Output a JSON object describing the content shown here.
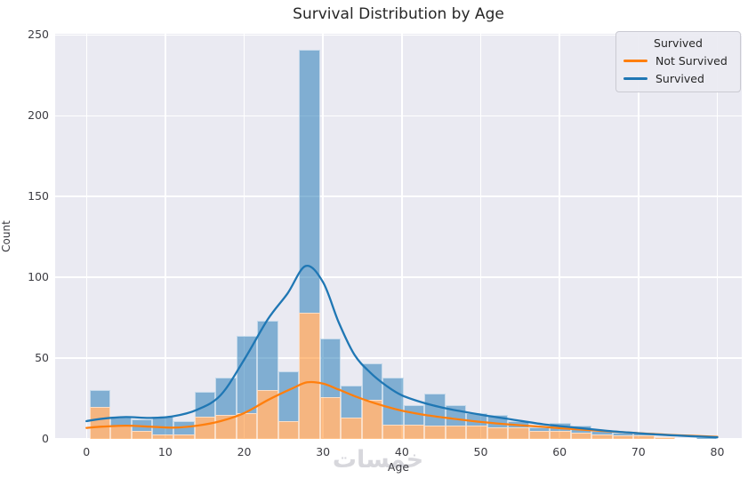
{
  "title": "Survival Distribution by Age",
  "watermark_text": "خمسات",
  "axes": {
    "xlabel": "Age",
    "ylabel": "Count",
    "x_ticks": [
      0,
      10,
      20,
      30,
      40,
      50,
      60,
      70,
      80
    ],
    "y_ticks": [
      0,
      50,
      100,
      150,
      200,
      250
    ]
  },
  "legend": {
    "title": "Survived",
    "items": [
      {
        "label": "Not Survived",
        "color": "#ff7f0e"
      },
      {
        "label": "Survived",
        "color": "#1f77b4"
      }
    ]
  },
  "colors": {
    "plot_background": "#eaeaf2",
    "grid": "#ffffff",
    "bar_not_survived": "rgba(255,127,14,0.5)",
    "bar_survived": "rgba(31,119,180,0.52)",
    "line_not_survived": "#ff7f0e",
    "line_survived": "#1f77b4",
    "text": "#262626"
  },
  "chart_data": {
    "type": "bar",
    "subtype": "stacked histogram with kde overlay",
    "title": "Survival Distribution by Age",
    "xlabel": "Age",
    "ylabel": "Count",
    "xlim": [
      -3.6,
      83.2
    ],
    "ylim": [
      0,
      250.7
    ],
    "grid": true,
    "legend_position": "upper right",
    "bins": {
      "start": 0.42,
      "width": 2.6527,
      "count": 30
    },
    "series": [
      {
        "name": "Not Survived",
        "stack_order": "bottom",
        "values": [
          20,
          8,
          5,
          3,
          3,
          14,
          15,
          16,
          30,
          11,
          78,
          26,
          13,
          24,
          9,
          9,
          8,
          8,
          8,
          7,
          7,
          5,
          5,
          4,
          3,
          2,
          2,
          1,
          0,
          0
        ]
      },
      {
        "name": "Survived",
        "stack_order": "top",
        "values": [
          10,
          6,
          7,
          11,
          8,
          15,
          23,
          48,
          43,
          31,
          163,
          36,
          20,
          23,
          29,
          12,
          20,
          13,
          8,
          8,
          4,
          2,
          5,
          4,
          2,
          2,
          2,
          0,
          0,
          1
        ]
      }
    ],
    "kde_series": [
      {
        "name": "Not Survived",
        "points": [
          [
            0,
            6.8
          ],
          [
            2,
            7.6
          ],
          [
            5,
            8.2
          ],
          [
            8,
            7.6
          ],
          [
            11,
            7.0
          ],
          [
            14,
            8.2
          ],
          [
            17,
            11
          ],
          [
            20,
            16
          ],
          [
            23,
            24
          ],
          [
            26,
            31
          ],
          [
            28,
            35
          ],
          [
            30,
            34.2
          ],
          [
            32,
            30.5
          ],
          [
            34,
            26.5
          ],
          [
            36,
            23
          ],
          [
            38,
            20
          ],
          [
            40,
            17.5
          ],
          [
            43,
            14.8
          ],
          [
            46,
            12.8
          ],
          [
            50,
            10.5
          ],
          [
            54,
            8.8
          ],
          [
            58,
            7.4
          ],
          [
            62,
            6
          ],
          [
            66,
            4.8
          ],
          [
            70,
            3.6
          ],
          [
            74,
            2.5
          ],
          [
            80,
            1.3
          ]
        ]
      },
      {
        "name": "Survived",
        "points": [
          [
            0,
            11
          ],
          [
            2,
            12.5
          ],
          [
            5,
            13.5
          ],
          [
            8,
            13
          ],
          [
            11,
            14
          ],
          [
            14,
            18
          ],
          [
            17,
            27
          ],
          [
            20,
            49
          ],
          [
            23,
            74
          ],
          [
            25.5,
            90
          ],
          [
            27.8,
            107
          ],
          [
            30,
            97
          ],
          [
            32,
            72
          ],
          [
            34,
            52
          ],
          [
            36,
            41
          ],
          [
            38,
            33
          ],
          [
            40,
            27
          ],
          [
            43,
            22
          ],
          [
            46,
            18.5
          ],
          [
            50,
            15
          ],
          [
            54,
            12
          ],
          [
            58,
            9
          ],
          [
            62,
            7
          ],
          [
            66,
            5
          ],
          [
            70,
            3.5
          ],
          [
            74,
            2.3
          ],
          [
            80,
            1
          ]
        ]
      }
    ]
  }
}
